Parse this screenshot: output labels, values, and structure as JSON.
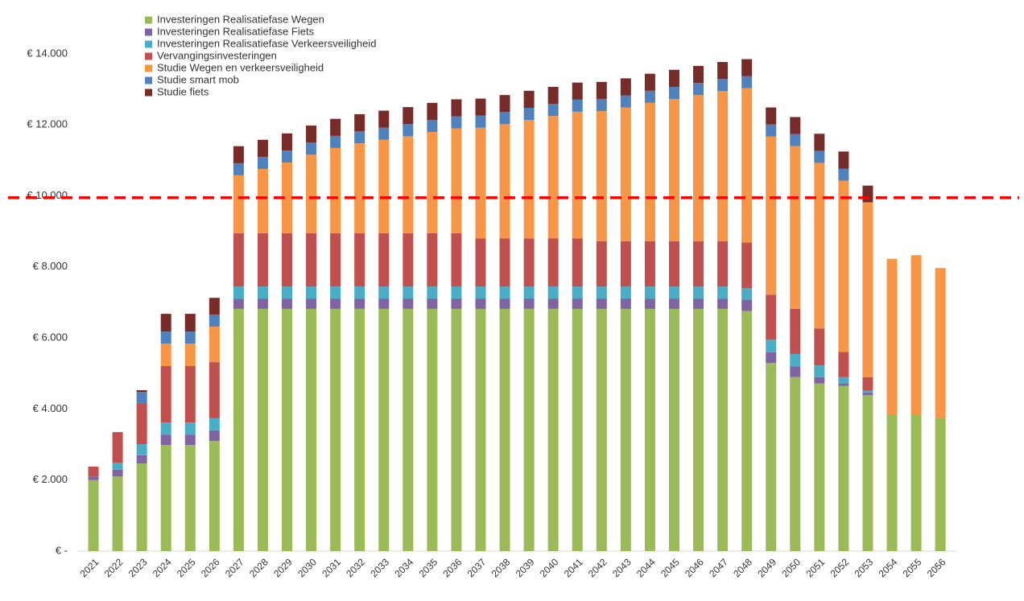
{
  "chart_data": {
    "type": "stacked-bar",
    "categories": [
      "2021",
      "2022",
      "2023",
      "2024",
      "2025",
      "2026",
      "2027",
      "2028",
      "2029",
      "2030",
      "2031",
      "2032",
      "2033",
      "2034",
      "2035",
      "2036",
      "2037",
      "2038",
      "2039",
      "2040",
      "2041",
      "2042",
      "2043",
      "2044",
      "2045",
      "2046",
      "2047",
      "2048",
      "2049",
      "2050",
      "2051",
      "2052",
      "2053",
      "2054",
      "2055",
      "2056"
    ],
    "series": [
      {
        "name": "Investeringen Realisatiefase Wegen",
        "color": "#9bbb59",
        "values": [
          2000,
          2100,
          2470,
          2990,
          2990,
          3100,
          6820,
          6820,
          6820,
          6820,
          6820,
          6820,
          6820,
          6820,
          6820,
          6820,
          6820,
          6820,
          6820,
          6820,
          6820,
          6820,
          6820,
          6820,
          6820,
          6820,
          6820,
          6760,
          5300,
          4900,
          4720,
          4650,
          4390,
          3850,
          3850,
          3740
        ]
      },
      {
        "name": "Investeringen Realisatiefase Fiets",
        "color": "#8064a2",
        "values": [
          100,
          190,
          230,
          290,
          290,
          300,
          290,
          290,
          290,
          290,
          290,
          290,
          290,
          290,
          290,
          290,
          290,
          290,
          290,
          290,
          290,
          290,
          290,
          290,
          290,
          290,
          290,
          320,
          300,
          300,
          180,
          70,
          70,
          0,
          0,
          0
        ]
      },
      {
        "name": "Investeringen Realisatiefase Verkeersveiligheid",
        "color": "#4bacc6",
        "values": [
          0,
          200,
          310,
          340,
          340,
          340,
          340,
          340,
          340,
          340,
          340,
          340,
          340,
          340,
          340,
          340,
          340,
          340,
          340,
          340,
          340,
          340,
          340,
          340,
          340,
          340,
          340,
          320,
          350,
          350,
          330,
          180,
          60,
          0,
          0,
          0
        ]
      },
      {
        "name": "Vervangingsinvesteringen",
        "color": "#c0504d",
        "values": [
          280,
          860,
          1160,
          1590,
          1590,
          1580,
          1500,
          1500,
          1500,
          1500,
          1500,
          1500,
          1500,
          1500,
          1500,
          1500,
          1350,
          1350,
          1350,
          1350,
          1350,
          1270,
          1270,
          1270,
          1270,
          1270,
          1270,
          1290,
          1270,
          1270,
          1040,
          710,
          380,
          0,
          0,
          0
        ]
      },
      {
        "name": "Studie Wegen en verkeersveiligheid",
        "color": "#f79646",
        "values": [
          0,
          0,
          0,
          630,
          630,
          1000,
          1630,
          1810,
          1990,
          2210,
          2400,
          2530,
          2630,
          2730,
          2850,
          2950,
          3120,
          3220,
          3340,
          3450,
          3570,
          3670,
          3770,
          3900,
          4010,
          4120,
          4230,
          4340,
          4450,
          4580,
          4660,
          4820,
          4920,
          4380,
          4480,
          4230
        ]
      },
      {
        "name": "Studie smart mob",
        "color": "#4f81bd",
        "values": [
          0,
          0,
          310,
          340,
          340,
          340,
          340,
          340,
          340,
          340,
          340,
          340,
          340,
          340,
          340,
          340,
          340,
          340,
          340,
          340,
          340,
          340,
          340,
          340,
          340,
          340,
          340,
          340,
          340,
          340,
          340,
          340,
          0,
          0,
          0,
          0
        ]
      },
      {
        "name": "Studie fiets",
        "color": "#772c2a",
        "values": [
          0,
          0,
          50,
          500,
          500,
          470,
          480,
          480,
          480,
          480,
          480,
          480,
          480,
          480,
          480,
          480,
          480,
          480,
          480,
          480,
          480,
          480,
          480,
          480,
          480,
          480,
          480,
          480,
          480,
          480,
          480,
          480,
          470,
          0,
          0,
          0
        ]
      }
    ],
    "ylim": [
      0,
      15000
    ],
    "yticks": [
      {
        "value": 0,
        "label": "€ -"
      },
      {
        "value": 2000,
        "label": "€ 2.000"
      },
      {
        "value": 4000,
        "label": "€ 4.000"
      },
      {
        "value": 6000,
        "label": "€ 6.000"
      },
      {
        "value": 8000,
        "label": "€ 8.000"
      },
      {
        "value": 10000,
        "label": "€ 10.000"
      },
      {
        "value": 12000,
        "label": "€ 12.000"
      },
      {
        "value": 14000,
        "label": "€ 14.000"
      }
    ],
    "grid": false,
    "reference_line": {
      "value": 9950,
      "color": "#ff0000"
    },
    "legend": "top-left"
  }
}
